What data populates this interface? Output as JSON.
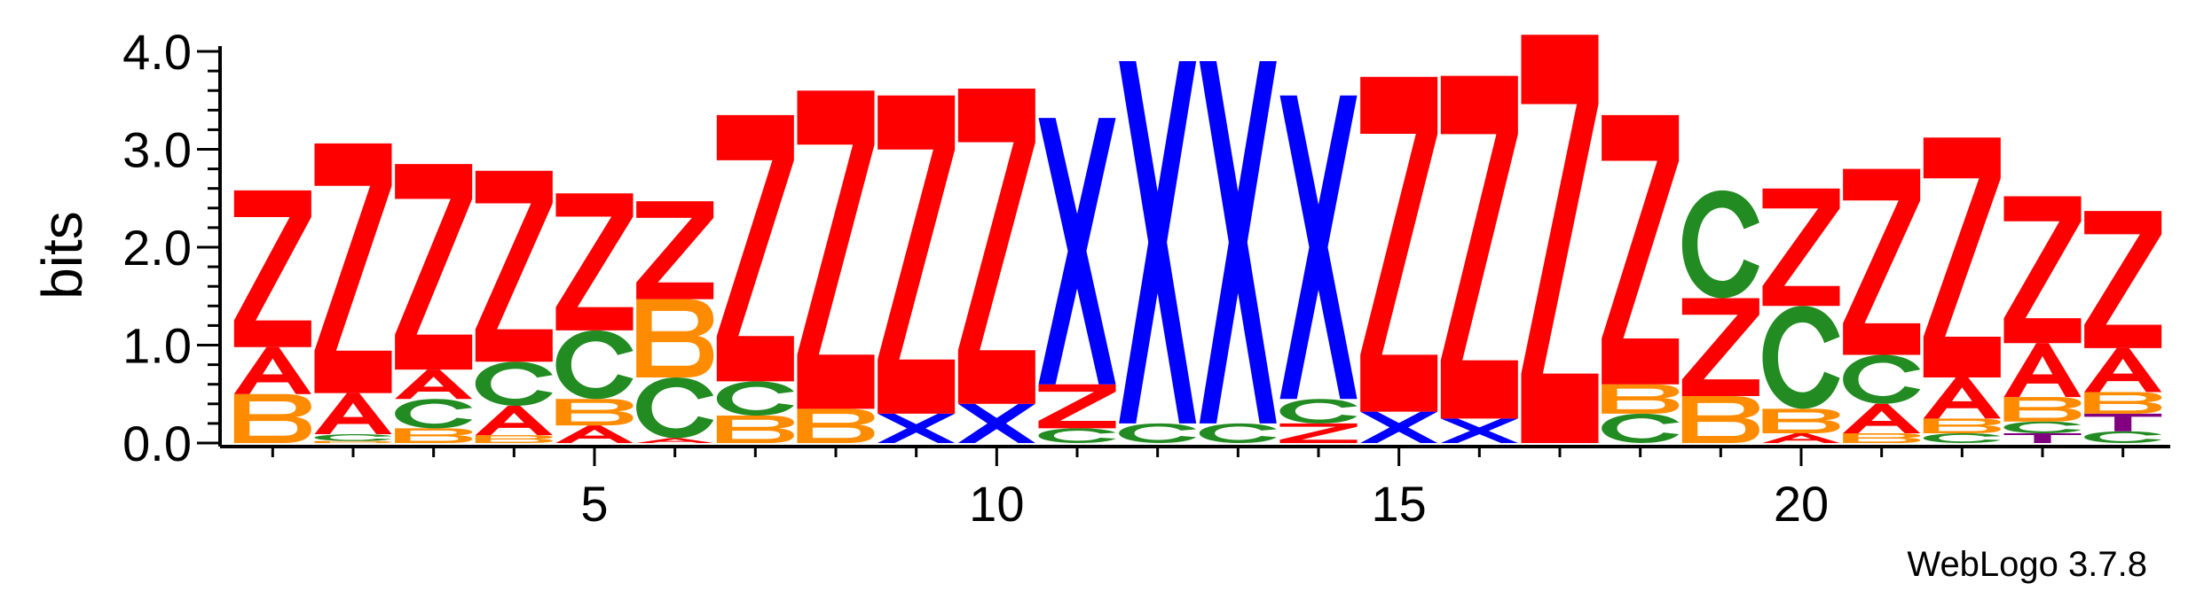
{
  "chart_data": {
    "type": "sequence-logo",
    "ylabel": "bits",
    "ylim": [
      0,
      4.0
    ],
    "y_ticks": [
      "0.0",
      "1.0",
      "2.0",
      "3.0",
      "4.0"
    ],
    "x_ticks": [
      {
        "position": 5,
        "label": "5"
      },
      {
        "position": 10,
        "label": "10"
      },
      {
        "position": 15,
        "label": "15"
      },
      {
        "position": 20,
        "label": "20"
      }
    ],
    "positions": 24,
    "colors": {
      "Z": "#ff0000",
      "A": "#ff0000",
      "B": "#ff8c00",
      "C": "#228b22",
      "X": "#0000ff",
      "T": "#800080"
    },
    "columns": [
      {
        "pos": 1,
        "stack": [
          [
            "B",
            0.5
          ],
          [
            "A",
            0.48
          ],
          [
            "Z",
            1.6
          ]
        ]
      },
      {
        "pos": 2,
        "stack": [
          [
            "B",
            0.02
          ],
          [
            "C",
            0.07
          ],
          [
            "A",
            0.42
          ],
          [
            "Z",
            2.55
          ]
        ]
      },
      {
        "pos": 3,
        "stack": [
          [
            "B",
            0.15
          ],
          [
            "C",
            0.3
          ],
          [
            "A",
            0.3
          ],
          [
            "Z",
            2.1
          ]
        ]
      },
      {
        "pos": 4,
        "stack": [
          [
            "B",
            0.08
          ],
          [
            "A",
            0.3
          ],
          [
            "C",
            0.45
          ],
          [
            "Z",
            1.95
          ]
        ]
      },
      {
        "pos": 5,
        "stack": [
          [
            "A",
            0.18
          ],
          [
            "B",
            0.27
          ],
          [
            "C",
            0.7
          ],
          [
            "Z",
            1.4
          ]
        ]
      },
      {
        "pos": 6,
        "stack": [
          [
            "A",
            0.05
          ],
          [
            "C",
            0.62
          ],
          [
            "B",
            0.8
          ],
          [
            "Z",
            1.0
          ]
        ]
      },
      {
        "pos": 7,
        "stack": [
          [
            "B",
            0.28
          ],
          [
            "C",
            0.35
          ],
          [
            "Z",
            2.72
          ]
        ]
      },
      {
        "pos": 8,
        "stack": [
          [
            "B",
            0.35
          ],
          [
            "Z",
            3.25
          ]
        ]
      },
      {
        "pos": 9,
        "stack": [
          [
            "X",
            0.3
          ],
          [
            "Z",
            3.25
          ]
        ]
      },
      {
        "pos": 10,
        "stack": [
          [
            "X",
            0.4
          ],
          [
            "Z",
            3.22
          ]
        ]
      },
      {
        "pos": 11,
        "stack": [
          [
            "C",
            0.15
          ],
          [
            "Z",
            0.45
          ],
          [
            "X",
            2.72
          ]
        ]
      },
      {
        "pos": 12,
        "stack": [
          [
            "C",
            0.2
          ],
          [
            "X",
            3.7
          ]
        ]
      },
      {
        "pos": 13,
        "stack": [
          [
            "C",
            0.2
          ],
          [
            "X",
            3.7
          ]
        ]
      },
      {
        "pos": 14,
        "stack": [
          [
            "Z",
            0.2
          ],
          [
            "C",
            0.25
          ],
          [
            "X",
            3.1
          ]
        ]
      },
      {
        "pos": 15,
        "stack": [
          [
            "X",
            0.32
          ],
          [
            "Z",
            3.42
          ]
        ]
      },
      {
        "pos": 16,
        "stack": [
          [
            "X",
            0.25
          ],
          [
            "Z",
            3.5
          ]
        ]
      },
      {
        "pos": 17,
        "stack": [
          [
            "Z",
            4.17
          ]
        ]
      },
      {
        "pos": 18,
        "stack": [
          [
            "C",
            0.3
          ],
          [
            "B",
            0.3
          ],
          [
            "Z",
            2.75
          ]
        ]
      },
      {
        "pos": 19,
        "stack": [
          [
            "B",
            0.48
          ],
          [
            "Z",
            1.0
          ],
          [
            "C",
            1.1
          ]
        ]
      },
      {
        "pos": 20,
        "stack": [
          [
            "A",
            0.1
          ],
          [
            "B",
            0.25
          ],
          [
            "C",
            1.05
          ],
          [
            "Z",
            1.2
          ]
        ]
      },
      {
        "pos": 21,
        "stack": [
          [
            "B",
            0.1
          ],
          [
            "A",
            0.3
          ],
          [
            "C",
            0.5
          ],
          [
            "Z",
            1.9
          ]
        ]
      },
      {
        "pos": 22,
        "stack": [
          [
            "C",
            0.1
          ],
          [
            "B",
            0.15
          ],
          [
            "A",
            0.42
          ],
          [
            "Z",
            2.45
          ]
        ]
      },
      {
        "pos": 23,
        "stack": [
          [
            "T",
            0.1
          ],
          [
            "C",
            0.12
          ],
          [
            "B",
            0.25
          ],
          [
            "A",
            0.55
          ],
          [
            "Z",
            1.5
          ]
        ]
      },
      {
        "pos": 24,
        "stack": [
          [
            "C",
            0.12
          ],
          [
            "T",
            0.18
          ],
          [
            "B",
            0.22
          ],
          [
            "A",
            0.45
          ],
          [
            "Z",
            1.4
          ]
        ]
      }
    ]
  },
  "footer": {
    "credit": "WebLogo 3.7.8"
  }
}
